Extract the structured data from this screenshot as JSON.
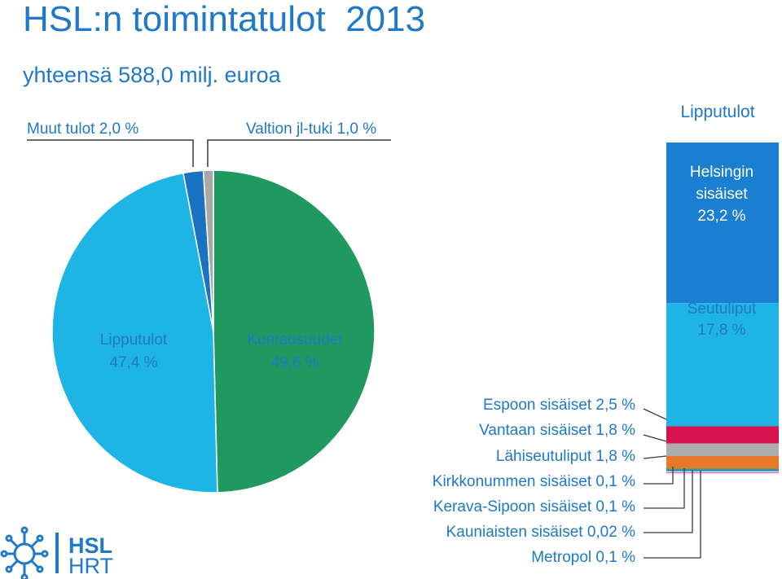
{
  "title": "HSL:n toimintatulot  2013",
  "subtitle": "yhteensä 588,0 milj. euroa",
  "colors": {
    "text": "#1f78c8",
    "kuntaosuudet": "#1f9960",
    "lipputulot": "#1eb4e6",
    "muut_tulot": "#1a72c2",
    "valtion_tuki": "#a8a8a8",
    "helsingin": "#1a7ed1",
    "seutuliput": "#1eb4e6",
    "espoon": "#d6124f",
    "vantaan": "#adadad",
    "lahiseutuliput": "#e8782a",
    "kirkkonummen": "#3c9c46",
    "kerava": "#1a72c2",
    "kauniaisten": "#8fd3ef",
    "metropol": "#e87ab8"
  },
  "chart_data": [
    {
      "type": "pie",
      "slices": [
        {
          "key": "kuntaosuudet",
          "label": "Kuntaosuudet",
          "value_label": "49,6 %",
          "value": 49.6
        },
        {
          "key": "lipputulot",
          "label": "Lipputulot",
          "value_label": "47,4 %",
          "value": 47.4
        },
        {
          "key": "muut_tulot",
          "label": "Muut tulot 2,0 %",
          "value": 2.0
        },
        {
          "key": "valtion_tuki",
          "label": "Valtion jl-tuki 1,0 %",
          "value": 1.0
        }
      ]
    },
    {
      "type": "bar",
      "stacked": true,
      "title": "Lipputulot",
      "segments": [
        {
          "key": "helsingin",
          "label_lines": [
            "Helsingin",
            "sisäiset",
            "23,2 %"
          ],
          "value": 23.2
        },
        {
          "key": "seutuliput",
          "label_lines": [
            "Seutuliput",
            "17,8 %"
          ],
          "value": 17.8
        },
        {
          "key": "espoon",
          "label": "Espoon sisäiset  2,5 %",
          "value": 2.5
        },
        {
          "key": "vantaan",
          "label": "Vantaan sisäiset  1,8 %",
          "value": 1.8
        },
        {
          "key": "lahiseutuliput",
          "label": "Lähiseutuliput  1,8 %",
          "value": 1.8
        },
        {
          "key": "kirkkonummen",
          "label": "Kirkkonummen sisäiset  0,1 %",
          "value": 0.1
        },
        {
          "key": "kerava",
          "label": "Kerava-Sipoon sisäiset  0,1 %",
          "value": 0.1
        },
        {
          "key": "kauniaisten",
          "label": "Kauniaisten sisäiset  0,02 %",
          "value": 0.02
        },
        {
          "key": "metropol",
          "label": "Metropol 0,1 %",
          "value": 0.1
        }
      ]
    }
  ],
  "logo": {
    "line1": "HSL",
    "line2": "HRT"
  }
}
